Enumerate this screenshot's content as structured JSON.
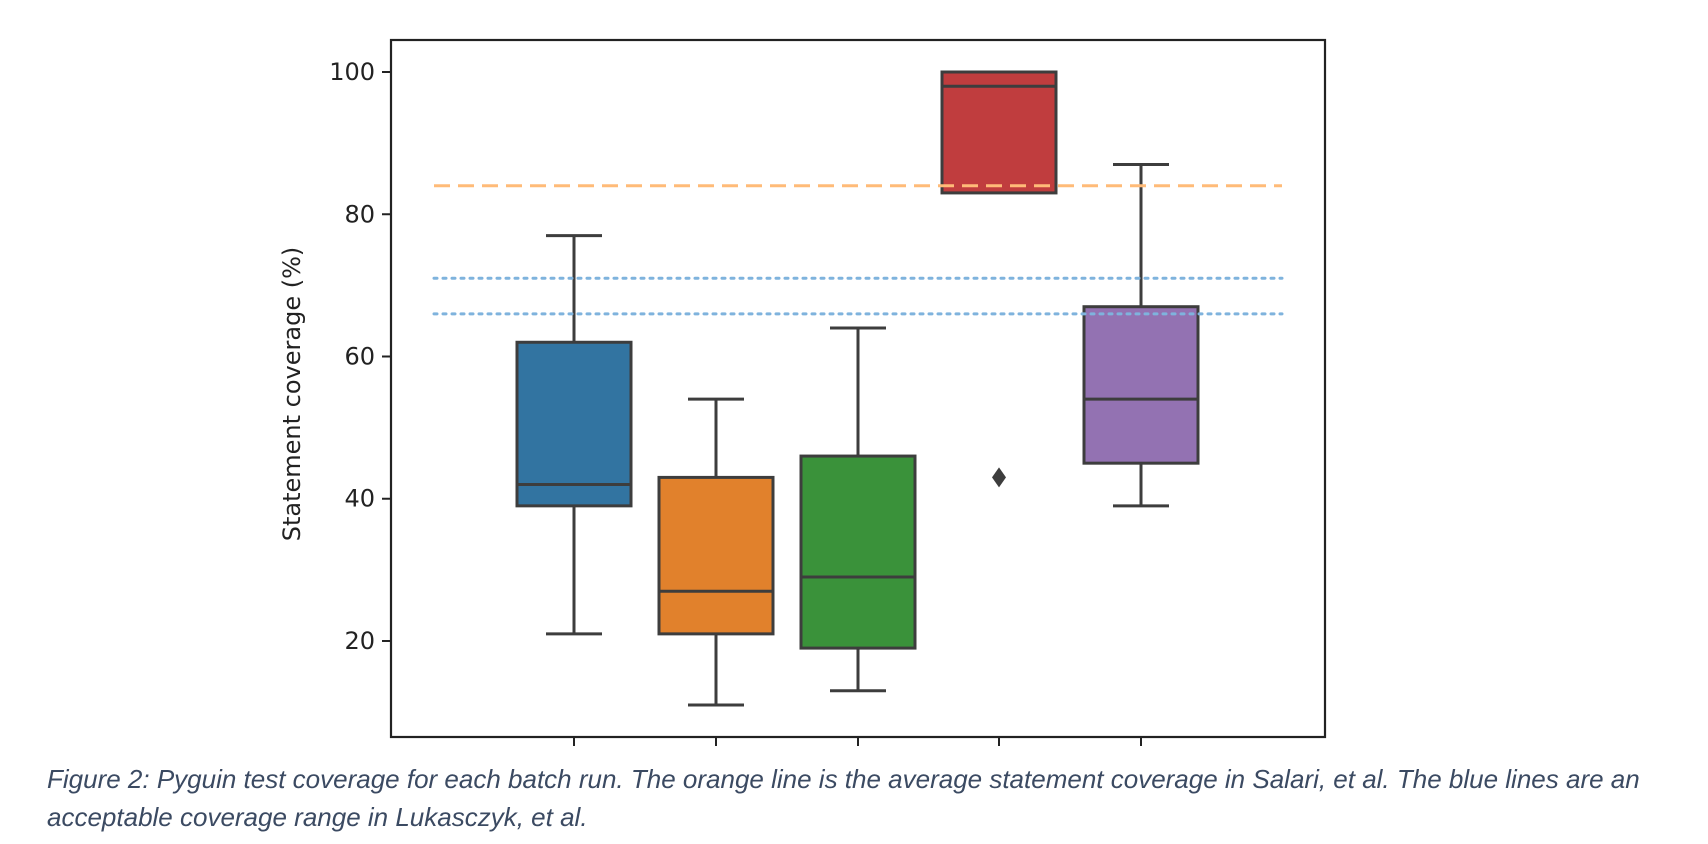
{
  "figure": {
    "caption": "Figure 2: Pyguin test coverage for each batch run. The orange line is the average statement coverage in Salari, et al. The blue lines are an acceptable coverage range in Lukasczyk, et al."
  },
  "chart_data": {
    "type": "box",
    "ylabel": "Statement coverage (%)",
    "xlabel": "",
    "ylim": [
      6.5,
      104.5
    ],
    "y_ticks": [
      20,
      40,
      60,
      80,
      100
    ],
    "grid": false,
    "legend": "none",
    "x_tick_labels_visible": false,
    "boxes": [
      {
        "whisker_low": 21,
        "q1": 39,
        "median": 42,
        "q3": 62,
        "whisker_high": 77,
        "outliers": [],
        "color": "#3274a1"
      },
      {
        "whisker_low": 11,
        "q1": 21,
        "median": 27,
        "q3": 43,
        "whisker_high": 54,
        "outliers": [],
        "color": "#e1812c"
      },
      {
        "whisker_low": 13,
        "q1": 19,
        "median": 29,
        "q3": 46,
        "whisker_high": 64,
        "outliers": [],
        "color": "#3a923a"
      },
      {
        "whisker_low": 83,
        "q1": 83,
        "median": 98,
        "q3": 100,
        "whisker_high": 100,
        "outliers": [
          43
        ],
        "color": "#c03d3e"
      },
      {
        "whisker_low": 39,
        "q1": 45,
        "median": 54,
        "q3": 67,
        "whisker_high": 87,
        "outliers": [],
        "color": "#9372b2"
      }
    ],
    "reference_lines": [
      {
        "y": 84,
        "style": "dashed",
        "color": "#ffbb78"
      },
      {
        "y": 71,
        "style": "dotted",
        "color": "#7fb3dd"
      },
      {
        "y": 66,
        "style": "dotted",
        "color": "#7fb3dd"
      }
    ]
  }
}
